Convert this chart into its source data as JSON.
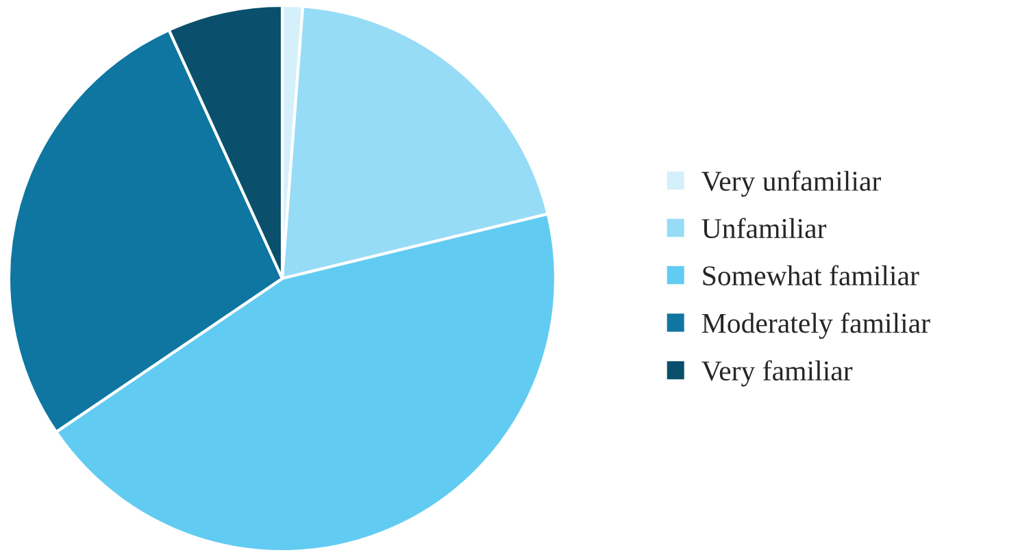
{
  "chart_data": {
    "type": "pie",
    "categories": [
      "Very unfamiliar",
      "Unfamiliar",
      "Somewhat familiar",
      "Moderately familiar",
      "Very familiar"
    ],
    "values": [
      1.2,
      20,
      44.3,
      27.7,
      6.8
    ],
    "colors": [
      "#d4f0fb",
      "#97dcf6",
      "#62cbf2",
      "#0e76a1",
      "#0a4f6b"
    ],
    "legend": "right"
  }
}
